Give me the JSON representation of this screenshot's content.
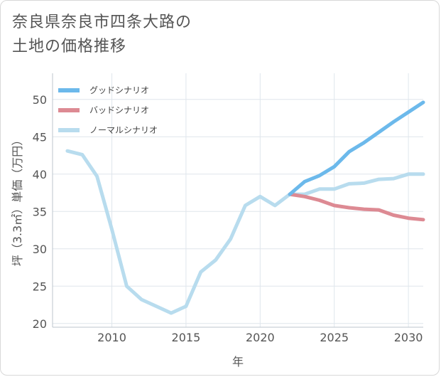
{
  "title_lines": [
    "奈良県奈良市四条大路の",
    "土地の価格推移"
  ],
  "chart_data": {
    "type": "line",
    "xlabel": "年",
    "ylabel": "坪（3.3㎡）単価（万円）",
    "xlim": [
      2006,
      2031
    ],
    "ylim": [
      19.5,
      53.5
    ],
    "x_ticks": [
      2010,
      2015,
      2020,
      2025,
      2030
    ],
    "y_ticks": [
      20,
      25,
      30,
      35,
      40,
      45,
      50
    ],
    "grid": true,
    "legend_position": "top-left",
    "series": [
      {
        "name": "グッドシナリオ",
        "color": "#6cb9eb",
        "x": [
          2022,
          2023,
          2024,
          2025,
          2026,
          2027,
          2028,
          2029,
          2030,
          2031
        ],
        "y": [
          37.3,
          39.0,
          39.8,
          41.0,
          43.0,
          44.2,
          45.6,
          47.0,
          48.3,
          49.6
        ]
      },
      {
        "name": "バッドシナリオ",
        "color": "#dd8a93",
        "x": [
          2022,
          2023,
          2024,
          2025,
          2026,
          2027,
          2028,
          2029,
          2030,
          2031
        ],
        "y": [
          37.3,
          37.0,
          36.5,
          35.8,
          35.5,
          35.3,
          35.2,
          34.5,
          34.1,
          33.9
        ]
      },
      {
        "name": "ノーマルシナリオ",
        "color": "#b8dcee",
        "x": [
          2007,
          2008,
          2009,
          2010,
          2011,
          2012,
          2013,
          2014,
          2015,
          2016,
          2017,
          2018,
          2019,
          2020,
          2021,
          2022,
          2023,
          2024,
          2025,
          2026,
          2027,
          2028,
          2029,
          2030,
          2031
        ],
        "y": [
          43.1,
          42.6,
          39.7,
          32.6,
          25.0,
          23.2,
          22.3,
          21.4,
          22.3,
          26.9,
          28.5,
          31.3,
          35.8,
          37.0,
          35.8,
          37.3,
          37.3,
          38.0,
          38.0,
          38.7,
          38.8,
          39.3,
          39.4,
          40.0,
          40.0
        ]
      }
    ]
  }
}
